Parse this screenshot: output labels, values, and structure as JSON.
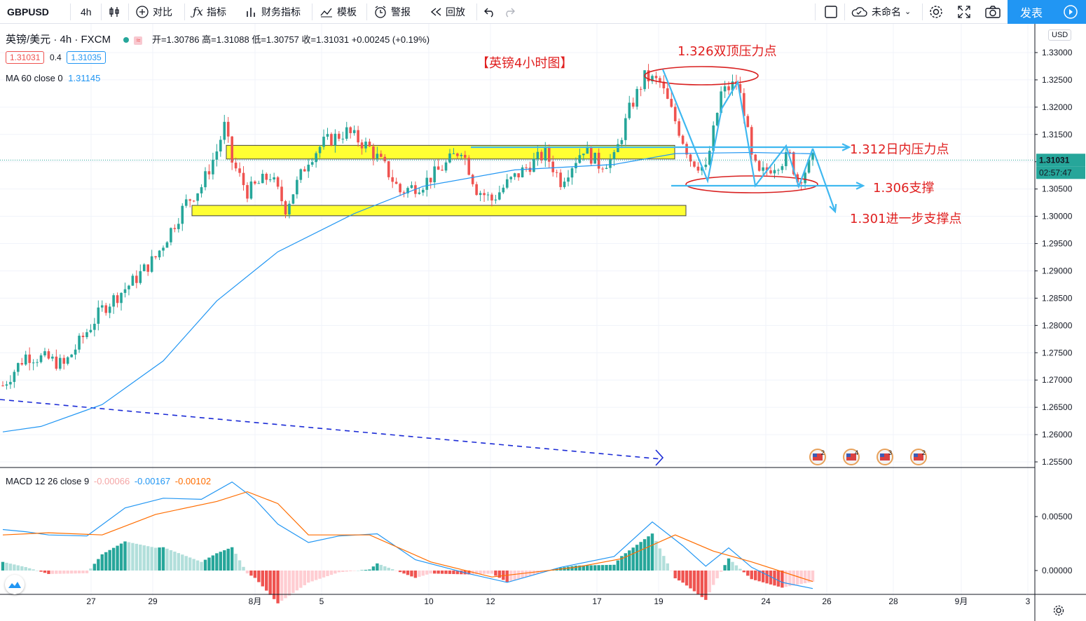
{
  "toolbar": {
    "symbol": "GBPUSD",
    "interval": "4h",
    "compare": "对比",
    "indicators": "指标",
    "financials": "财务指标",
    "templates": "模板",
    "alerts": "警报",
    "replay": "回放",
    "layout_name": "未命名",
    "publish": "发表"
  },
  "legend": {
    "title": "英镑/美元 · 4h · FXCM",
    "ohlc": "开=1.30786  高=1.31088  低=1.30757  收=1.31031  +0.00245 (+0.19%)",
    "bid": "1.31031",
    "spread": "0.4",
    "ask": "1.31035",
    "ma": "MA 60 close 0",
    "ma_value": "1.31145",
    "macd": "MACD 12 26 close 9",
    "macd_hist": "-0.00066",
    "macd_line": "-0.00167",
    "macd_signal": "-0.00102"
  },
  "price_axis": {
    "currency": "USD",
    "ticks": [
      "1.33000",
      "1.32500",
      "1.32000",
      "1.31500",
      "1.31000",
      "1.30500",
      "1.30000",
      "1.29500",
      "1.29000",
      "1.28500",
      "1.28000",
      "1.27500",
      "1.27000",
      "1.26500",
      "1.26000",
      "1.25500"
    ],
    "last_price": "1.31031",
    "countdown": "02:57:47"
  },
  "macd_axis": {
    "ticks": [
      "0.00500",
      "0.00000"
    ]
  },
  "time_axis": {
    "labels": [
      "27",
      "29",
      "8月",
      "5",
      "10",
      "12",
      "17",
      "19",
      "24",
      "26",
      "28",
      "9月",
      "3"
    ]
  },
  "events": [
    "2",
    "4",
    "3",
    "2"
  ],
  "colors": {
    "up": "#26a69a",
    "down": "#ef5350",
    "ma": "#2196f3",
    "signal": "#ff6d00",
    "annotation": "#e02020",
    "arrow": "#3fb8f0",
    "zone": "#ffff33"
  },
  "annotations": {
    "title": "【英镑4小时图】",
    "double_top": "1.326双顶压力点",
    "intraday": "1.312日内压力点",
    "support": "1.306支撑",
    "support2": "1.301进一步支撑点"
  },
  "chart_data": {
    "type": "candlestick",
    "symbol": "GBPUSD",
    "interval": "4h",
    "ylim": [
      1.2545,
      1.3323
    ],
    "yticks": [
      1.33,
      1.325,
      1.32,
      1.315,
      1.31,
      1.305,
      1.3,
      1.295,
      1.29,
      1.285,
      1.28,
      1.275,
      1.27,
      1.265,
      1.26,
      1.255
    ],
    "x_labels": [
      "27",
      "29",
      "8月",
      "5",
      "10",
      "12",
      "17",
      "19",
      "24",
      "26",
      "28",
      "9月",
      "3"
    ],
    "last_close": 1.31031,
    "close_path": [
      {
        "x": 0,
        "y": 1.269
      },
      {
        "x": 6,
        "y": 1.2745
      },
      {
        "x": 12,
        "y": 1.2738
      },
      {
        "x": 16,
        "y": 1.2727
      },
      {
        "x": 18,
        "y": 1.2748
      },
      {
        "x": 26,
        "y": 1.283
      },
      {
        "x": 34,
        "y": 1.288
      },
      {
        "x": 40,
        "y": 1.2925
      },
      {
        "x": 44,
        "y": 1.2975
      },
      {
        "x": 48,
        "y": 1.3025
      },
      {
        "x": 52,
        "y": 1.3055
      },
      {
        "x": 56,
        "y": 1.312
      },
      {
        "x": 58,
        "y": 1.3165
      },
      {
        "x": 60,
        "y": 1.31
      },
      {
        "x": 64,
        "y": 1.3045
      },
      {
        "x": 70,
        "y": 1.3075
      },
      {
        "x": 74,
        "y": 1.3015
      },
      {
        "x": 80,
        "y": 1.3105
      },
      {
        "x": 84,
        "y": 1.3135
      },
      {
        "x": 90,
        "y": 1.3155
      },
      {
        "x": 96,
        "y": 1.3125
      },
      {
        "x": 100,
        "y": 1.309
      },
      {
        "x": 104,
        "y": 1.3045
      },
      {
        "x": 110,
        "y": 1.306
      },
      {
        "x": 116,
        "y": 1.3095
      },
      {
        "x": 120,
        "y": 1.3125
      },
      {
        "x": 124,
        "y": 1.305
      },
      {
        "x": 128,
        "y": 1.303
      },
      {
        "x": 132,
        "y": 1.306
      },
      {
        "x": 138,
        "y": 1.3095
      },
      {
        "x": 142,
        "y": 1.3115
      },
      {
        "x": 146,
        "y": 1.3065
      },
      {
        "x": 152,
        "y": 1.3125
      },
      {
        "x": 156,
        "y": 1.3095
      },
      {
        "x": 160,
        "y": 1.3105
      },
      {
        "x": 164,
        "y": 1.3195
      },
      {
        "x": 168,
        "y": 1.3255
      },
      {
        "x": 172,
        "y": 1.3245
      },
      {
        "x": 176,
        "y": 1.3175
      },
      {
        "x": 180,
        "y": 1.3105
      },
      {
        "x": 184,
        "y": 1.3085
      },
      {
        "x": 188,
        "y": 1.3225
      },
      {
        "x": 192,
        "y": 1.3245
      },
      {
        "x": 194,
        "y": 1.3195
      },
      {
        "x": 196,
        "y": 1.3105
      },
      {
        "x": 198,
        "y": 1.3075
      },
      {
        "x": 202,
        "y": 1.3095
      },
      {
        "x": 206,
        "y": 1.311
      },
      {
        "x": 208,
        "y": 1.3065
      },
      {
        "x": 212,
        "y": 1.3103
      }
    ],
    "ma60_path": [
      {
        "x": 0,
        "y": 1.2605
      },
      {
        "x": 10,
        "y": 1.2615
      },
      {
        "x": 26,
        "y": 1.2655
      },
      {
        "x": 42,
        "y": 1.2735
      },
      {
        "x": 56,
        "y": 1.2845
      },
      {
        "x": 72,
        "y": 1.2935
      },
      {
        "x": 92,
        "y": 1.3005
      },
      {
        "x": 110,
        "y": 1.3055
      },
      {
        "x": 134,
        "y": 1.3085
      },
      {
        "x": 160,
        "y": 1.3095
      },
      {
        "x": 176,
        "y": 1.3115
      },
      {
        "x": 196,
        "y": 1.3117
      },
      {
        "x": 212,
        "y": 1.31145
      }
    ],
    "macd_line_path": [
      {
        "x": 0,
        "y": 0.0038
      },
      {
        "x": 6,
        "y": 0.0036
      },
      {
        "x": 12,
        "y": 0.0033
      },
      {
        "x": 22,
        "y": 0.0032
      },
      {
        "x": 32,
        "y": 0.0058
      },
      {
        "x": 42,
        "y": 0.0067
      },
      {
        "x": 52,
        "y": 0.0066
      },
      {
        "x": 60,
        "y": 0.0082
      },
      {
        "x": 66,
        "y": 0.0066
      },
      {
        "x": 72,
        "y": 0.0043
      },
      {
        "x": 80,
        "y": 0.0026
      },
      {
        "x": 88,
        "y": 0.0032
      },
      {
        "x": 98,
        "y": 0.0034
      },
      {
        "x": 108,
        "y": 0.001
      },
      {
        "x": 122,
        "y": -0.0003
      },
      {
        "x": 132,
        "y": -0.0011
      },
      {
        "x": 146,
        "y": 0.0003
      },
      {
        "x": 160,
        "y": 0.0013
      },
      {
        "x": 170,
        "y": 0.0045
      },
      {
        "x": 178,
        "y": 0.0023
      },
      {
        "x": 184,
        "y": 0.0004
      },
      {
        "x": 190,
        "y": 0.0021
      },
      {
        "x": 196,
        "y": 0.0003
      },
      {
        "x": 204,
        "y": -0.0011
      },
      {
        "x": 212,
        "y": -0.00167
      }
    ],
    "signal_line_path": [
      {
        "x": 0,
        "y": 0.0033
      },
      {
        "x": 12,
        "y": 0.0035
      },
      {
        "x": 26,
        "y": 0.0033
      },
      {
        "x": 40,
        "y": 0.0052
      },
      {
        "x": 56,
        "y": 0.0064
      },
      {
        "x": 64,
        "y": 0.0073
      },
      {
        "x": 72,
        "y": 0.0062
      },
      {
        "x": 80,
        "y": 0.0033
      },
      {
        "x": 96,
        "y": 0.0033
      },
      {
        "x": 112,
        "y": 0.0008
      },
      {
        "x": 128,
        "y": -0.0006
      },
      {
        "x": 150,
        "y": 0.0003
      },
      {
        "x": 162,
        "y": 0.0011
      },
      {
        "x": 176,
        "y": 0.0033
      },
      {
        "x": 186,
        "y": 0.0018
      },
      {
        "x": 196,
        "y": 0.0008
      },
      {
        "x": 212,
        "y": -0.00102
      }
    ],
    "annotations": [
      {
        "text": "1.326双顶压力点",
        "level": 1.326
      },
      {
        "text": "1.312日内压力点",
        "level": 1.312
      },
      {
        "text": "1.306支撑",
        "level": 1.306
      },
      {
        "text": "1.301进一步支撑点",
        "level": 1.301
      }
    ],
    "zones": [
      [
        1.3105,
        1.313
      ],
      [
        1.3001,
        1.302
      ]
    ]
  }
}
